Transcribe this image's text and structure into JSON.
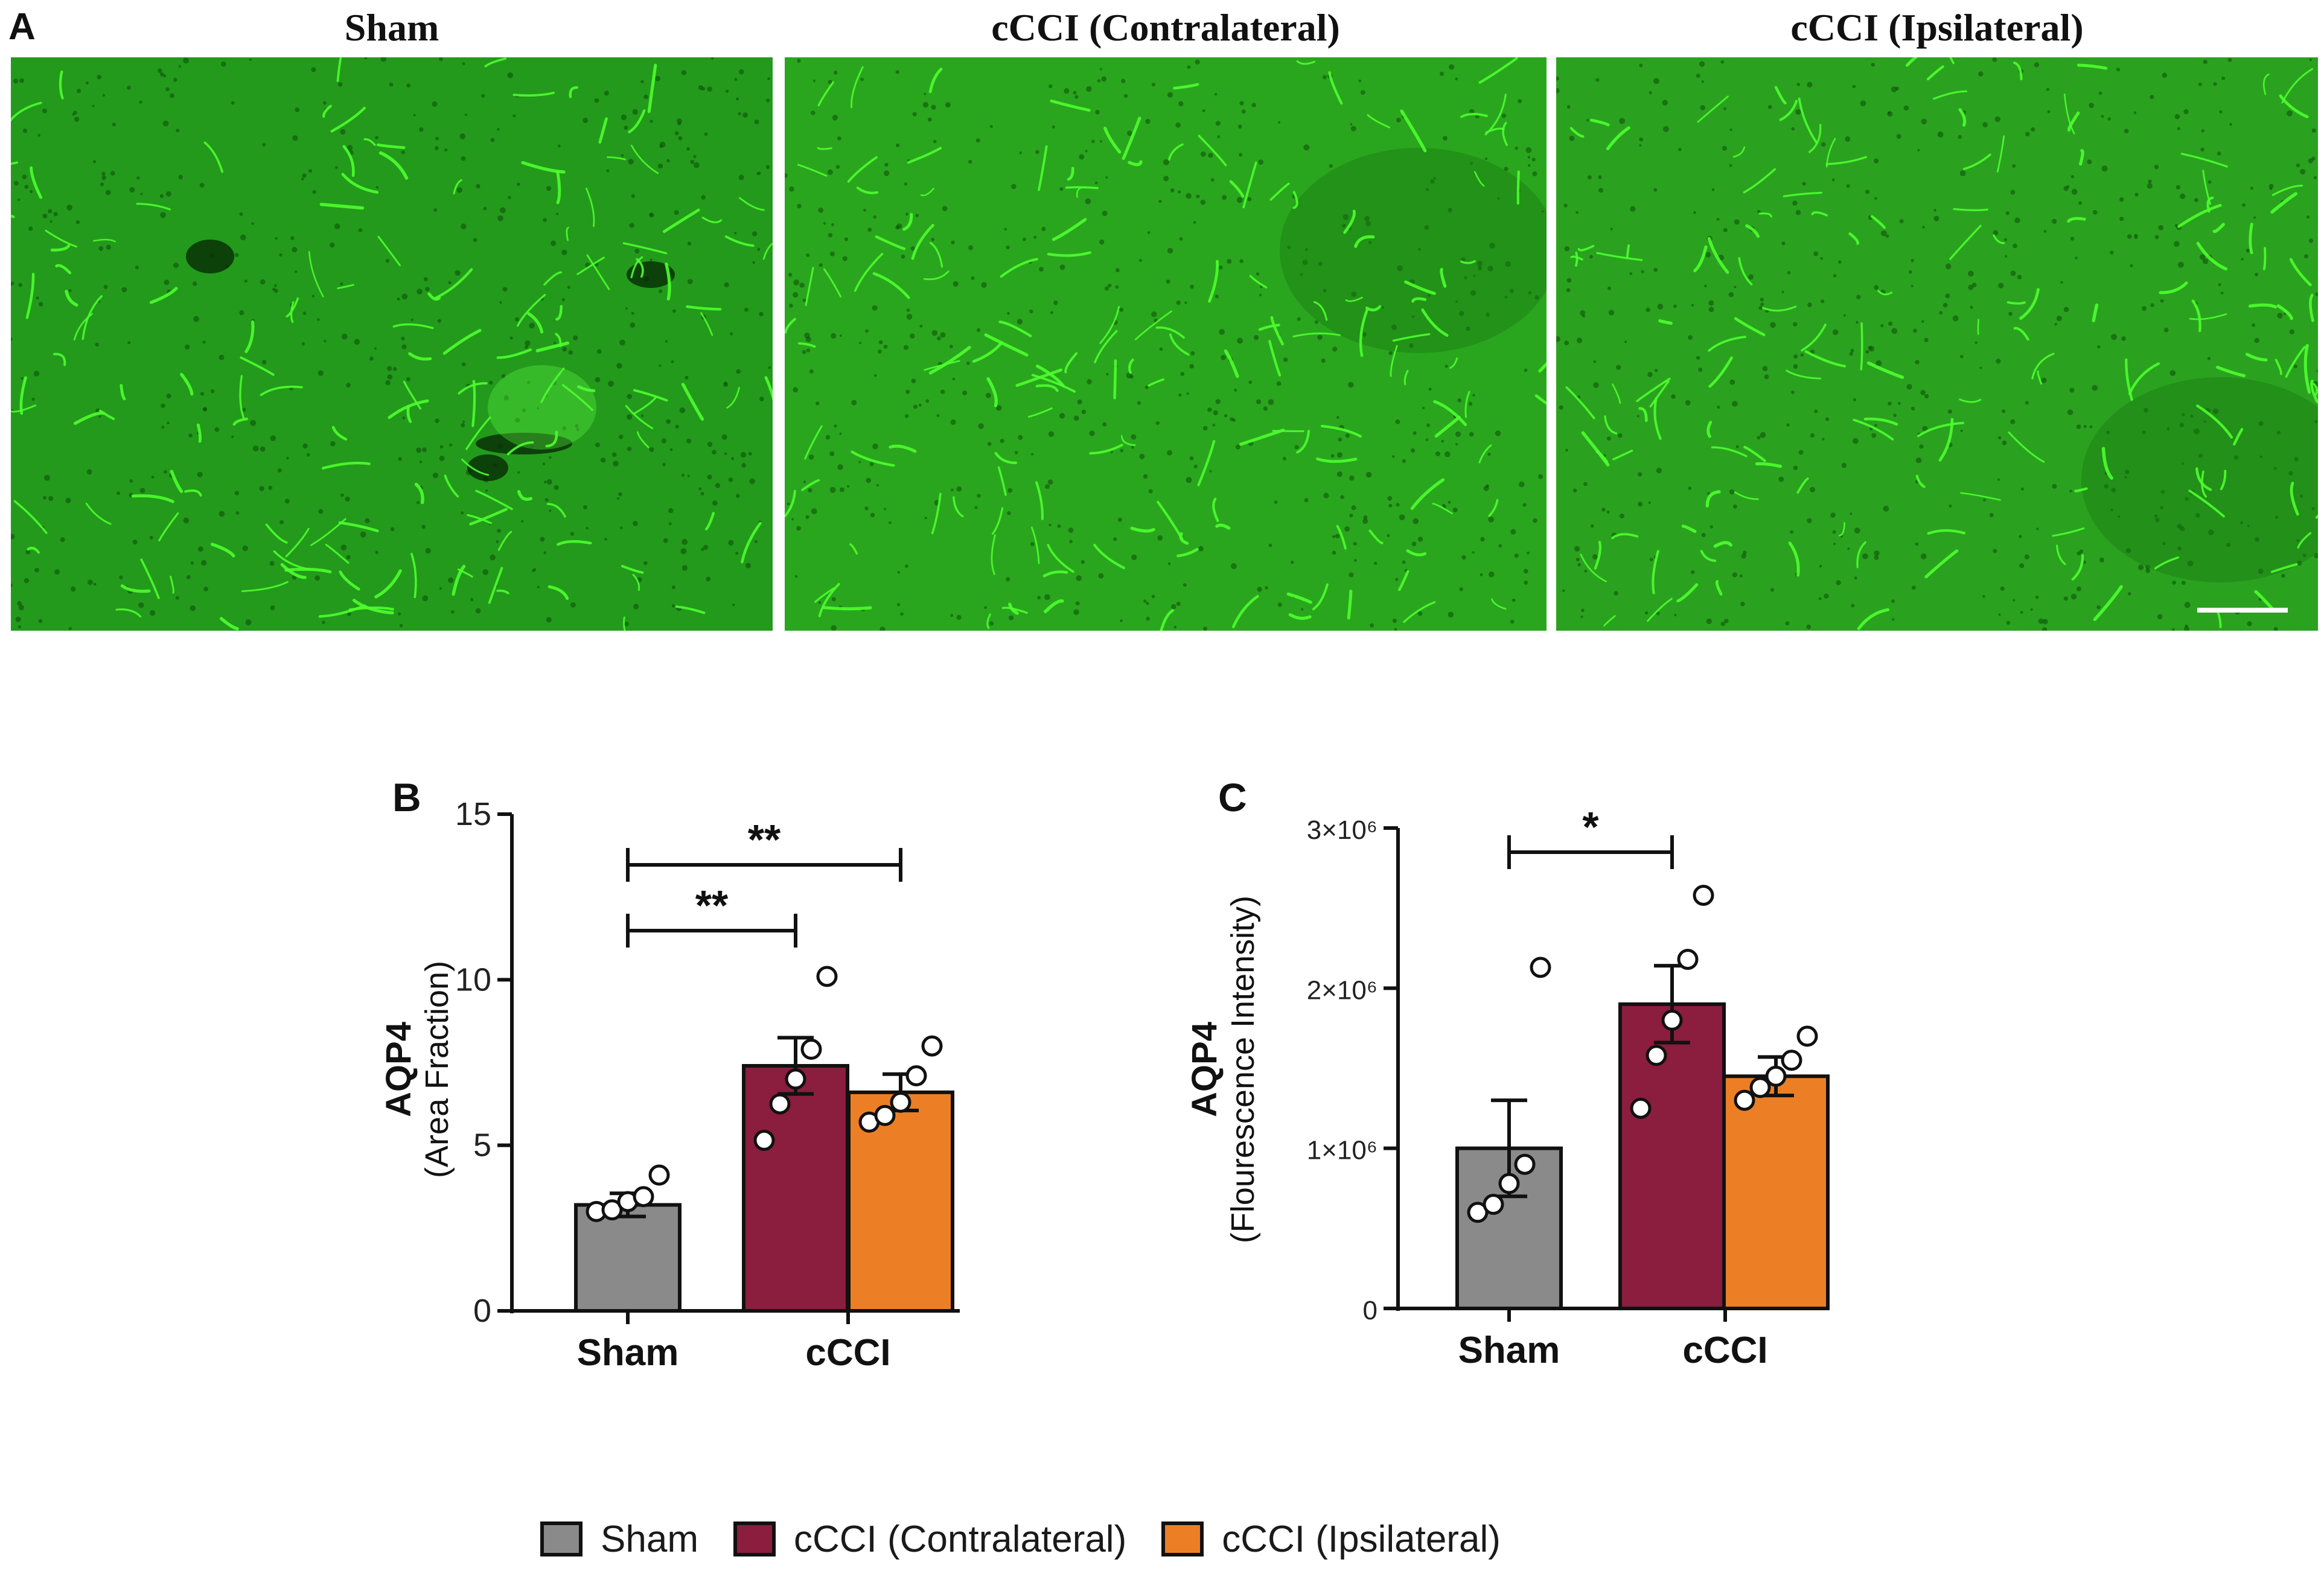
{
  "panel_labels": {
    "a": "A",
    "b": "B",
    "c": "C"
  },
  "micrographs": [
    {
      "title": "Sham",
      "tint": "#239a1c"
    },
    {
      "title": "cCCI (Contralateral)",
      "tint": "#2aa61e"
    },
    {
      "title": "cCCI (Ipsilateral)",
      "tint": "#2aa21f"
    }
  ],
  "colors": {
    "sham": "#8a8a8a",
    "contra": "#8b1d3e",
    "ipsi": "#ec7f25",
    "vessel": "#4cff2e"
  },
  "legend": [
    {
      "label": "Sham",
      "color": "#8a8a8a"
    },
    {
      "label": "cCCI (Contralateral)",
      "color": "#8b1d3e"
    },
    {
      "label": "cCCI (Ipsilateral)",
      "color": "#ec7f25"
    }
  ],
  "chart_data": [
    {
      "type": "bar",
      "panel": "B",
      "ylabel": "AQP4",
      "ylabel_sub": "(Area Fraction)",
      "ylim": [
        0,
        15
      ],
      "yticks": [
        0,
        5,
        10,
        15
      ],
      "ytick_labels": [
        "0",
        "5",
        "10",
        "15"
      ],
      "categories": [
        "Sham",
        "cCCI"
      ],
      "bars": [
        {
          "group": "Sham",
          "series": "Sham",
          "value": 3.2,
          "sem": 0.35,
          "points": [
            3.0,
            3.05,
            3.3,
            3.45,
            4.1
          ]
        },
        {
          "group": "cCCI",
          "series": "cCCI (Contralateral)",
          "value": 7.4,
          "sem": 0.85,
          "points": [
            5.15,
            6.25,
            7.0,
            7.9,
            10.1
          ]
        },
        {
          "group": "cCCI",
          "series": "cCCI (Ipsilateral)",
          "value": 6.6,
          "sem": 0.55,
          "points": [
            5.7,
            5.9,
            6.3,
            7.1,
            8.0
          ]
        }
      ],
      "significance": [
        {
          "from": 0,
          "to": 1,
          "label": "**"
        },
        {
          "from": 0,
          "to": 2,
          "label": "**"
        }
      ]
    },
    {
      "type": "bar",
      "panel": "C",
      "ylabel": "AQP4",
      "ylabel_sub": "(Flourescence Intensity)",
      "ylim": [
        0,
        3000000
      ],
      "yticks": [
        0,
        1000000,
        2000000,
        3000000
      ],
      "ytick_labels": [
        "0",
        "1×10⁶",
        "2×10⁶",
        "3×10⁶"
      ],
      "categories": [
        "Sham",
        "cCCI"
      ],
      "bars": [
        {
          "group": "Sham",
          "series": "Sham",
          "value": 1000000,
          "sem": 300000,
          "points": [
            600000,
            650000,
            780000,
            900000,
            2130000
          ]
        },
        {
          "group": "cCCI",
          "series": "cCCI (Contralateral)",
          "value": 1900000,
          "sem": 240000,
          "points": [
            1250000,
            1580000,
            1800000,
            2180000,
            2580000
          ]
        },
        {
          "group": "cCCI",
          "series": "cCCI (Ipsilateral)",
          "value": 1450000,
          "sem": 120000,
          "points": [
            1300000,
            1380000,
            1450000,
            1550000,
            1700000
          ]
        }
      ],
      "significance": [
        {
          "from": 0,
          "to": 1,
          "label": "*"
        }
      ]
    }
  ]
}
